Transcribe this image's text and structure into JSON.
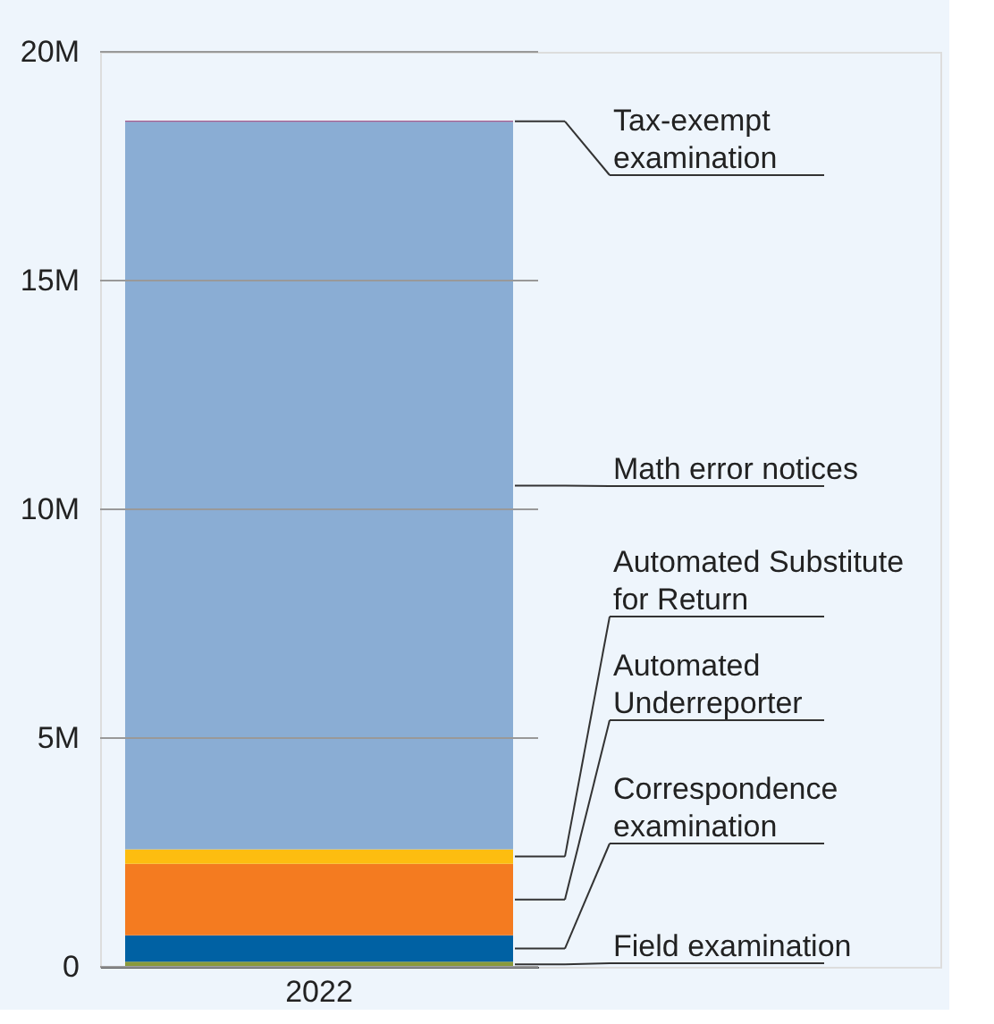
{
  "chart_data": {
    "type": "bar",
    "stacked": true,
    "categories": [
      "2022"
    ],
    "series": [
      {
        "name": "Field examination",
        "color": "#8a9a3b",
        "values": [
          110000
        ]
      },
      {
        "name": "Correspondence examination",
        "color": "#0061a3",
        "values": [
          580000
        ]
      },
      {
        "name": "Automated Underreporter",
        "color": "#f47b20",
        "values": [
          1560000
        ]
      },
      {
        "name": "Automated Substitute for Return",
        "color": "#fdbd10",
        "values": [
          320000
        ]
      },
      {
        "name": "Math error notices",
        "color": "#8aadd4",
        "values": [
          15900000
        ]
      },
      {
        "name": "Tax-exempt examination",
        "color": "#8b2a6b",
        "values": [
          20000
        ]
      }
    ],
    "ylim": [
      0,
      20000000
    ],
    "yticks": [
      {
        "value": 0,
        "label": "0"
      },
      {
        "value": 5000000,
        "label": "5M"
      },
      {
        "value": 10000000,
        "label": "10M"
      },
      {
        "value": 15000000,
        "label": "15M"
      },
      {
        "value": 20000000,
        "label": "20M"
      }
    ],
    "grid": "y",
    "legend": false
  }
}
